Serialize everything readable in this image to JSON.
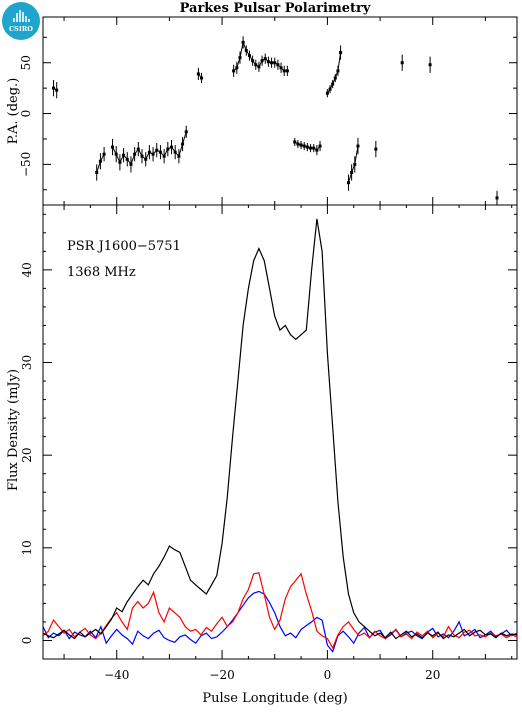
{
  "title": "Parkes Pulsar Polarimetry",
  "logo": {
    "text": "CSIRO",
    "color": "#1fa4cd"
  },
  "panel_text": {
    "pulsar": "PSR J1600−5751",
    "frequency": "1368 MHz"
  },
  "chart_data": [
    {
      "type": "scatter",
      "ylabel": "P.A. (deg.)",
      "xlim": [
        -54,
        36
      ],
      "ylim": [
        -90,
        95
      ],
      "xticks": [
        -40,
        -20,
        0,
        20
      ],
      "yticks": [
        -50,
        0,
        50
      ],
      "ytick_labels": [
        "−50",
        "0",
        "50"
      ],
      "series": [
        {
          "points": [
            {
              "x": -52.0,
              "y": 25,
              "err": 8
            },
            {
              "x": -51.4,
              "y": 23,
              "err": 8
            },
            {
              "x": -43.8,
              "y": -58,
              "err": 8
            },
            {
              "x": -43.1,
              "y": -47,
              "err": 8
            },
            {
              "x": -42.4,
              "y": -40,
              "err": 7
            },
            {
              "x": -40.8,
              "y": -33,
              "err": 8
            },
            {
              "x": -40.1,
              "y": -40,
              "err": 8
            },
            {
              "x": -39.4,
              "y": -48,
              "err": 8
            },
            {
              "x": -38.7,
              "y": -41,
              "err": 7
            },
            {
              "x": -38.0,
              "y": -45,
              "err": 7
            },
            {
              "x": -37.3,
              "y": -50,
              "err": 8
            },
            {
              "x": -36.6,
              "y": -40,
              "err": 7
            },
            {
              "x": -35.9,
              "y": -35,
              "err": 7
            },
            {
              "x": -35.2,
              "y": -42,
              "err": 7
            },
            {
              "x": -34.5,
              "y": -45,
              "err": 7
            },
            {
              "x": -33.8,
              "y": -38,
              "err": 7
            },
            {
              "x": -33.1,
              "y": -40,
              "err": 7
            },
            {
              "x": -32.4,
              "y": -36,
              "err": 7
            },
            {
              "x": -31.7,
              "y": -38,
              "err": 7
            },
            {
              "x": -31.0,
              "y": -42,
              "err": 7
            },
            {
              "x": -30.3,
              "y": -35,
              "err": 7
            },
            {
              "x": -29.6,
              "y": -33,
              "err": 7
            },
            {
              "x": -28.9,
              "y": -38,
              "err": 7
            },
            {
              "x": -28.2,
              "y": -42,
              "err": 7
            },
            {
              "x": -27.5,
              "y": -30,
              "err": 7
            },
            {
              "x": -26.8,
              "y": -18,
              "err": 6
            },
            {
              "x": -24.5,
              "y": 39,
              "err": 6
            },
            {
              "x": -23.9,
              "y": 35,
              "err": 5
            },
            {
              "x": -17.8,
              "y": 42,
              "err": 6
            },
            {
              "x": -17.2,
              "y": 45,
              "err": 6
            },
            {
              "x": -16.6,
              "y": 55,
              "err": 6
            },
            {
              "x": -16.0,
              "y": 70,
              "err": 6
            },
            {
              "x": -15.4,
              "y": 62,
              "err": 5
            },
            {
              "x": -14.8,
              "y": 57,
              "err": 5
            },
            {
              "x": -14.2,
              "y": 52,
              "err": 5
            },
            {
              "x": -13.6,
              "y": 48,
              "err": 5
            },
            {
              "x": -13.0,
              "y": 46,
              "err": 5
            },
            {
              "x": -12.4,
              "y": 52,
              "err": 5
            },
            {
              "x": -11.8,
              "y": 54,
              "err": 5
            },
            {
              "x": -11.2,
              "y": 51,
              "err": 5
            },
            {
              "x": -10.6,
              "y": 50,
              "err": 5
            },
            {
              "x": -10.0,
              "y": 50,
              "err": 5
            },
            {
              "x": -9.4,
              "y": 48,
              "err": 5
            },
            {
              "x": -8.8,
              "y": 45,
              "err": 5
            },
            {
              "x": -8.2,
              "y": 42,
              "err": 5
            },
            {
              "x": -7.6,
              "y": 42,
              "err": 5
            },
            {
              "x": -6.2,
              "y": -28,
              "err": 4
            },
            {
              "x": -5.6,
              "y": -30,
              "err": 4
            },
            {
              "x": -5.0,
              "y": -31,
              "err": 4
            },
            {
              "x": -4.4,
              "y": -32,
              "err": 4
            },
            {
              "x": -3.8,
              "y": -33,
              "err": 4
            },
            {
              "x": -3.2,
              "y": -34,
              "err": 4
            },
            {
              "x": -2.6,
              "y": -34,
              "err": 4
            },
            {
              "x": -2.0,
              "y": -36,
              "err": 5
            },
            {
              "x": -1.4,
              "y": -32,
              "err": 5
            },
            {
              "x": 0.0,
              "y": 20,
              "err": 4
            },
            {
              "x": 0.5,
              "y": 24,
              "err": 4
            },
            {
              "x": 1.0,
              "y": 29,
              "err": 4
            },
            {
              "x": 1.5,
              "y": 35,
              "err": 4
            },
            {
              "x": 2.0,
              "y": 42,
              "err": 5
            },
            {
              "x": 2.5,
              "y": 60,
              "err": 7
            },
            {
              "x": 4.0,
              "y": -68,
              "err": 8
            },
            {
              "x": 4.6,
              "y": -58,
              "err": 8
            },
            {
              "x": 5.2,
              "y": -50,
              "err": 8
            },
            {
              "x": 5.8,
              "y": -32,
              "err": 8
            },
            {
              "x": 9.2,
              "y": -35,
              "err": 8
            },
            {
              "x": 14.2,
              "y": 50,
              "err": 8
            },
            {
              "x": 19.5,
              "y": 48,
              "err": 8
            },
            {
              "x": 32.2,
              "y": -83,
              "err": 7
            }
          ]
        }
      ]
    },
    {
      "type": "line",
      "xlabel": "Pulse Longitude (deg)",
      "ylabel": "Flux Density (mJy)",
      "xlim": [
        -54,
        36
      ],
      "ylim": [
        -2,
        47
      ],
      "xticks": [
        -40,
        -20,
        0,
        20
      ],
      "xtick_labels": [
        "−40",
        "−20",
        "0",
        "20"
      ],
      "yticks": [
        0,
        10,
        20,
        30,
        40
      ],
      "series": [
        {
          "color": "#000000",
          "x": [
            -54,
            -53,
            -52,
            -51,
            -50,
            -49,
            -48,
            -47,
            -46,
            -45,
            -44,
            -43,
            -42,
            -41,
            -40,
            -39,
            -38,
            -37,
            -36,
            -35,
            -34,
            -33,
            -32,
            -31,
            -30,
            -29,
            -28,
            -27,
            -26,
            -25,
            -24,
            -23,
            -22,
            -21,
            -20,
            -19,
            -18,
            -17,
            -16,
            -15,
            -14,
            -13,
            -12,
            -11,
            -10,
            -9,
            -8,
            -7,
            -6,
            -5,
            -4,
            -3,
            -2,
            -1,
            0,
            1,
            2,
            3,
            4,
            5,
            6,
            7,
            8,
            9,
            10,
            11,
            12,
            13,
            14,
            15,
            16,
            17,
            18,
            19,
            20,
            21,
            22,
            23,
            24,
            25,
            26,
            27,
            28,
            29,
            30,
            31,
            32,
            33,
            34,
            35,
            36
          ],
          "y": [
            0.8,
            0.5,
            0.3,
            0.7,
            1.1,
            0.6,
            0.2,
            0.9,
            0.4,
            0.8,
            1.2,
            0.7,
            1.5,
            2.3,
            3.5,
            3.1,
            4.2,
            5.0,
            5.8,
            6.5,
            6.0,
            7.2,
            8.0,
            9.0,
            10.2,
            9.8,
            9.5,
            8.0,
            6.5,
            6.0,
            5.5,
            5.0,
            6.0,
            7.0,
            10.5,
            15.5,
            22.0,
            28.0,
            34.0,
            38.0,
            41.0,
            42.3,
            41.0,
            38.0,
            35.0,
            33.5,
            34.0,
            33.0,
            32.5,
            33.0,
            33.5,
            40.0,
            45.5,
            42.0,
            31.0,
            23.0,
            15.0,
            9.0,
            5.0,
            3.0,
            2.0,
            1.5,
            1.0,
            0.5,
            0.8,
            0.3,
            0.9,
            0.2,
            0.6,
            1.0,
            0.4,
            0.7,
            0.3,
            0.8,
            0.5,
            0.9,
            0.2,
            0.6,
            0.4,
            0.8,
            1.2,
            0.5,
            0.9,
            1.1,
            0.6,
            0.7,
            0.3,
            0.8,
            0.5,
            0.7,
            0.6
          ]
        },
        {
          "color": "#ff0000",
          "x": [
            -54,
            -53,
            -52,
            -51,
            -50,
            -49,
            -48,
            -47,
            -46,
            -45,
            -44,
            -43,
            -42,
            -41,
            -40,
            -39,
            -38,
            -37,
            -36,
            -35,
            -34,
            -33,
            -32,
            -31,
            -30,
            -29,
            -28,
            -27,
            -26,
            -25,
            -24,
            -23,
            -22,
            -21,
            -20,
            -19,
            -18,
            -17,
            -16,
            -15,
            -14,
            -13,
            -12,
            -11,
            -10,
            -9,
            -8,
            -7,
            -6,
            -5,
            -4,
            -3,
            -2,
            -1,
            0,
            1,
            2,
            3,
            4,
            5,
            6,
            7,
            8,
            9,
            10,
            11,
            12,
            13,
            14,
            15,
            16,
            17,
            18,
            19,
            20,
            21,
            22,
            23,
            24,
            25,
            26,
            27,
            28,
            29,
            30,
            31,
            32,
            33,
            34,
            35,
            36
          ],
          "y": [
            0.5,
            1.0,
            2.2,
            1.5,
            0.8,
            1.2,
            0.4,
            0.9,
            1.3,
            0.6,
            0.2,
            0.8,
            1.6,
            2.4,
            3.0,
            2.0,
            1.2,
            3.5,
            4.2,
            3.5,
            4.0,
            5.2,
            3.0,
            2.0,
            3.5,
            3.0,
            2.5,
            1.5,
            1.0,
            1.2,
            0.6,
            1.4,
            1.0,
            1.8,
            2.5,
            1.5,
            2.0,
            3.0,
            4.5,
            5.5,
            7.2,
            7.3,
            5.0,
            2.5,
            1.2,
            2.2,
            4.5,
            5.8,
            6.5,
            7.2,
            5.0,
            3.2,
            1.0,
            0.5,
            0.2,
            -0.8,
            0.6,
            1.5,
            2.0,
            1.2,
            0.5,
            0.8,
            0.3,
            1.0,
            0.5,
            0.2,
            0.8,
            1.1,
            0.4,
            0.7,
            0.2,
            0.9,
            0.5,
            1.0,
            0.3,
            0.8,
            0.4,
            1.5,
            0.6,
            0.3,
            0.9,
            1.1,
            0.5,
            0.6,
            0.4,
            0.8,
            0.5,
            0.7,
            0.3,
            0.6,
            0.4
          ]
        },
        {
          "color": "#0000ff",
          "x": [
            -54,
            -53,
            -52,
            -51,
            -50,
            -49,
            -48,
            -47,
            -46,
            -45,
            -44,
            -43,
            -42,
            -41,
            -40,
            -39,
            -38,
            -37,
            -36,
            -35,
            -34,
            -33,
            -32,
            -31,
            -30,
            -29,
            -28,
            -27,
            -26,
            -25,
            -24,
            -23,
            -22,
            -21,
            -20,
            -19,
            -18,
            -17,
            -16,
            -15,
            -14,
            -13,
            -12,
            -11,
            -10,
            -9,
            -8,
            -7,
            -6,
            -5,
            -4,
            -3,
            -2,
            -1,
            0,
            1,
            2,
            3,
            4,
            5,
            6,
            7,
            8,
            9,
            10,
            11,
            12,
            13,
            14,
            15,
            16,
            17,
            18,
            19,
            20,
            21,
            22,
            23,
            24,
            25,
            26,
            27,
            28,
            29,
            30,
            31,
            32,
            33,
            34,
            35,
            36
          ],
          "y": [
            1.5,
            0.3,
            0.8,
            0.5,
            1.1,
            0.2,
            0.9,
            0.6,
            0.4,
            1.0,
            0.3,
            1.5,
            -0.3,
            0.5,
            1.2,
            0.6,
            0.2,
            -0.4,
            1.0,
            0.5,
            0.2,
            0.8,
            1.1,
            0.3,
            0.0,
            -0.2,
            0.4,
            0.6,
            0.1,
            -0.3,
            0.5,
            0.8,
            0.2,
            0.4,
            0.9,
            1.5,
            2.2,
            3.0,
            3.8,
            4.6,
            5.1,
            5.3,
            5.0,
            4.1,
            3.0,
            1.5,
            0.5,
            0.8,
            0.3,
            1.2,
            1.6,
            2.0,
            2.5,
            2.2,
            -0.5,
            -1.2,
            0.5,
            1.0,
            0.4,
            -0.3,
            0.8,
            1.4,
            0.3,
            0.9,
            1.1,
            0.2,
            0.6,
            1.2,
            0.4,
            0.8,
            1.0,
            0.5,
            0.2,
            0.9,
            1.3,
            0.4,
            0.7,
            0.3,
            1.0,
            2.0,
            0.5,
            0.8,
            1.2,
            0.3,
            0.6,
            1.0,
            0.4,
            0.7,
            1.1,
            0.5,
            0.8
          ]
        }
      ]
    }
  ]
}
